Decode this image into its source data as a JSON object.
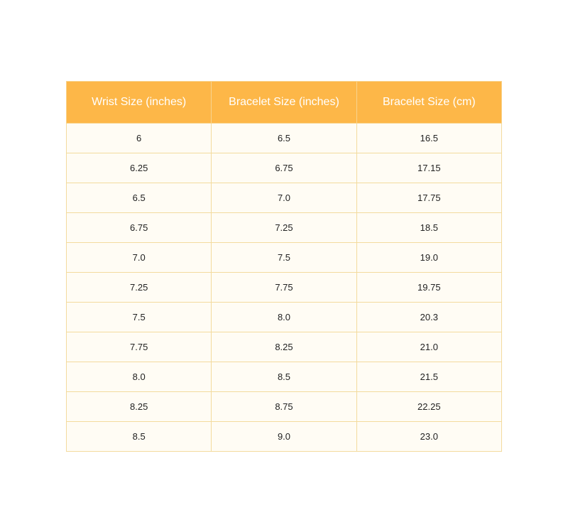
{
  "table": {
    "headers": [
      "Wrist Size (inches)",
      "Bracelet Size (inches)",
      "Bracelet Size (cm)"
    ],
    "rows": [
      [
        "6",
        "6.5",
        "16.5"
      ],
      [
        "6.25",
        "6.75",
        "17.15"
      ],
      [
        "6.5",
        "7.0",
        "17.75"
      ],
      [
        "6.75",
        "7.25",
        "18.5"
      ],
      [
        "7.0",
        "7.5",
        "19.0"
      ],
      [
        "7.25",
        "7.75",
        "19.75"
      ],
      [
        "7.5",
        "8.0",
        "20.3"
      ],
      [
        "7.75",
        "8.25",
        "21.0"
      ],
      [
        "8.0",
        "8.5",
        "21.5"
      ],
      [
        "8.25",
        "8.75",
        "22.25"
      ],
      [
        "8.5",
        "9.0",
        "23.0"
      ]
    ],
    "colors": {
      "header_bg": "#FDB748",
      "cell_bg": "#FFFCF4",
      "border": "#F3DB9E"
    }
  }
}
